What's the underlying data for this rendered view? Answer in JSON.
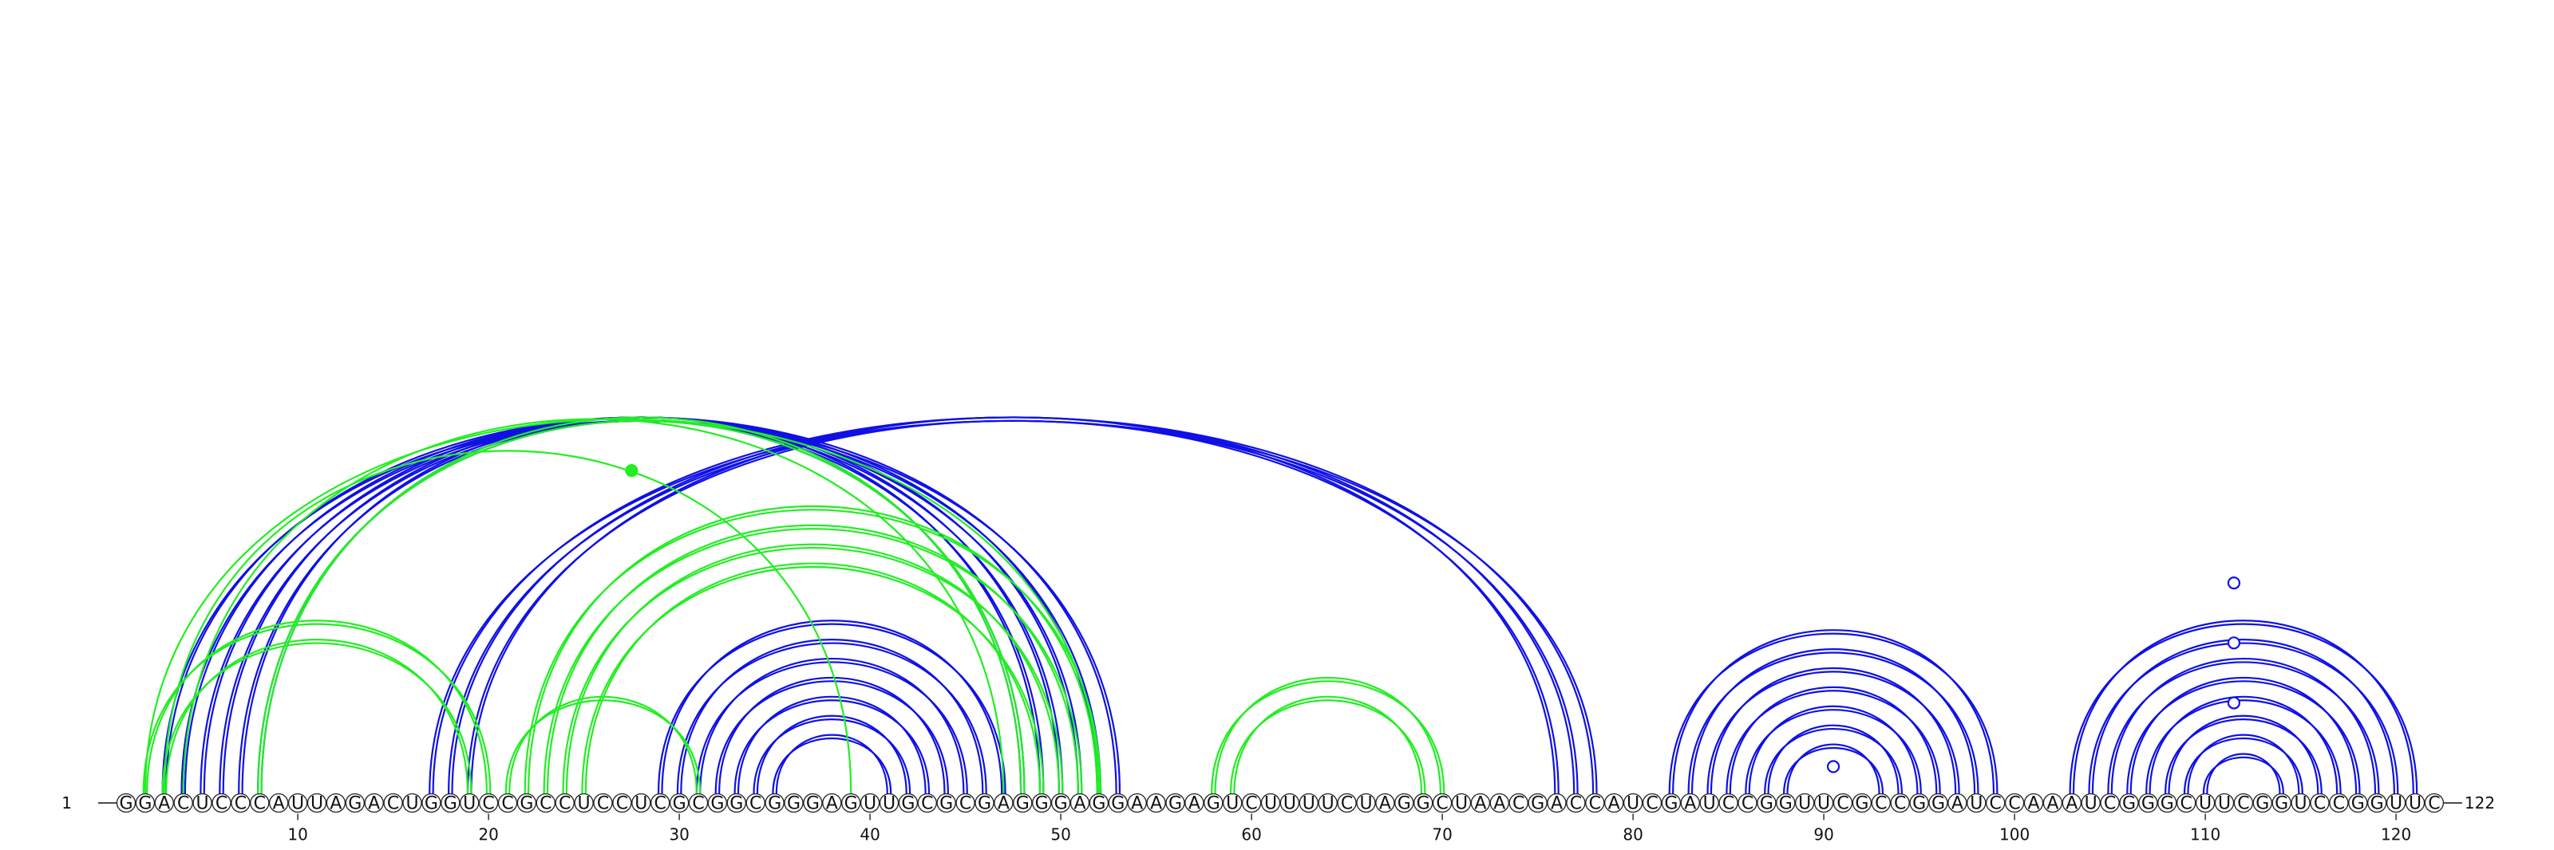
{
  "diagram": {
    "sequence": "GGACUCCCAUUAGACUGGUCCGCCUCCUCGCGGCGGGAGUUGCGCGAGGGAGGAAGAGUCUUUUCUAGGCUAACGACCAUCGAUCCGGUUCGCCGGAUCCAAAUCGGGCUUCGGUCCGGUUC",
    "start_label": "1",
    "end_label": "122",
    "ticks": [
      10,
      20,
      30,
      40,
      50,
      60,
      70,
      80,
      90,
      100,
      110,
      120
    ],
    "colors": {
      "blue": "#1010e6",
      "green": "#22ee22"
    },
    "groups": [
      {
        "color": "blue",
        "double": true,
        "pairs": [
          [
            3,
            53
          ],
          [
            4,
            52
          ],
          [
            5,
            51
          ],
          [
            6,
            50
          ],
          [
            7,
            49
          ],
          [
            8,
            48
          ]
        ]
      },
      {
        "color": "blue",
        "double": true,
        "pairs": [
          [
            17,
            78
          ],
          [
            18,
            77
          ],
          [
            19,
            76
          ]
        ]
      },
      {
        "color": "blue",
        "double": true,
        "pairs": [
          [
            29,
            47
          ],
          [
            30,
            46
          ],
          [
            31,
            45
          ],
          [
            32,
            44
          ],
          [
            33,
            43
          ],
          [
            34,
            42
          ],
          [
            35,
            41
          ]
        ]
      },
      {
        "color": "blue",
        "double": true,
        "pairs": [
          [
            82,
            99
          ],
          [
            83,
            98
          ],
          [
            84,
            97
          ],
          [
            85,
            96
          ],
          [
            86,
            95
          ],
          [
            87,
            94
          ],
          [
            88,
            93
          ]
        ]
      },
      {
        "color": "blue",
        "double": true,
        "pairs": [
          [
            103,
            121
          ],
          [
            104,
            120
          ],
          [
            105,
            119
          ],
          [
            106,
            118
          ],
          [
            107,
            117
          ],
          [
            108,
            116
          ],
          [
            109,
            115
          ],
          [
            110,
            114
          ]
        ]
      },
      {
        "color": "green",
        "double": true,
        "pairs": [
          [
            2,
            20
          ],
          [
            3,
            19
          ],
          [
            8,
            48
          ],
          [
            21,
            31
          ],
          [
            22,
            52
          ],
          [
            23,
            51
          ],
          [
            24,
            50
          ],
          [
            25,
            49
          ],
          [
            58,
            70
          ],
          [
            59,
            69
          ]
        ]
      },
      {
        "color": "green",
        "double": false,
        "pairs": [
          [
            2,
            52
          ],
          [
            3,
            39
          ],
          [
            4,
            47
          ]
        ]
      }
    ],
    "markers": [
      {
        "color": "green",
        "between": [
          27,
          28
        ],
        "level": 0.82,
        "filled": true
      },
      {
        "color": "blue",
        "between": [
          90,
          91
        ],
        "level": 0.03,
        "filled": false
      },
      {
        "color": "blue",
        "between": [
          111,
          112
        ],
        "level": 0.2,
        "filled": false
      },
      {
        "color": "blue",
        "between": [
          111,
          112
        ],
        "level": 0.36,
        "filled": false
      },
      {
        "color": "blue",
        "between": [
          111,
          112
        ],
        "level": 0.52,
        "filled": false
      }
    ]
  }
}
